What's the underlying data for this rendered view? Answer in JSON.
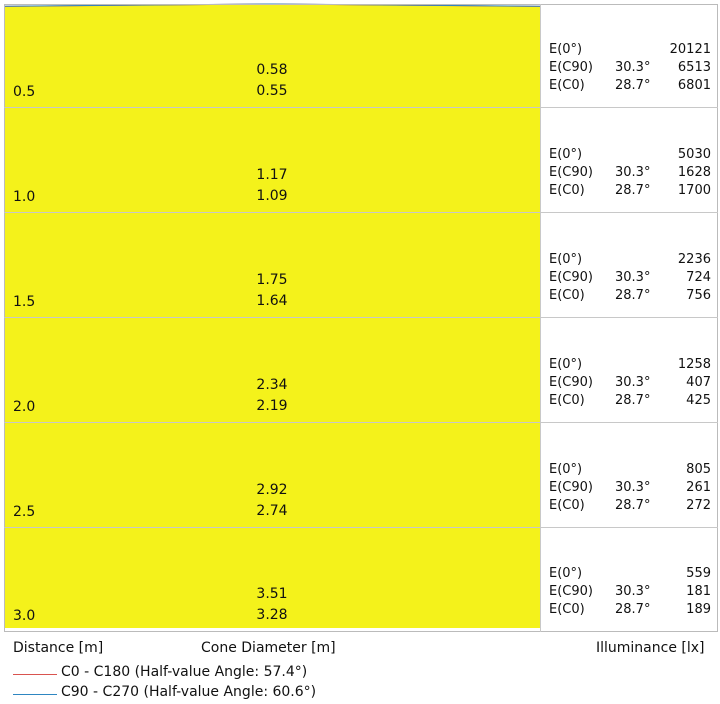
{
  "chart_data": {
    "type": "area",
    "title": "",
    "xlabel": "Cone Diameter [m]",
    "ylabel": "Distance [m]",
    "illuminance_label": "Illuminance [lx]",
    "fill_color": "#f4f21b",
    "distance_max": 3.0,
    "rows": [
      {
        "distance": "0.5",
        "d_c90": "0.58",
        "d_c0": "0.55",
        "e0_label": "E(0°)",
        "e0": "20121",
        "ec90_label": "E(C90)",
        "ec90_angle": "30.3°",
        "ec90": "6513",
        "ec0_label": "E(C0)",
        "ec0_angle": "28.7°",
        "ec0": "6801"
      },
      {
        "distance": "1.0",
        "d_c90": "1.17",
        "d_c0": "1.09",
        "e0_label": "E(0°)",
        "e0": "5030",
        "ec90_label": "E(C90)",
        "ec90_angle": "30.3°",
        "ec90": "1628",
        "ec0_label": "E(C0)",
        "ec0_angle": "28.7°",
        "ec0": "1700"
      },
      {
        "distance": "1.5",
        "d_c90": "1.75",
        "d_c0": "1.64",
        "e0_label": "E(0°)",
        "e0": "2236",
        "ec90_label": "E(C90)",
        "ec90_angle": "30.3°",
        "ec90": "724",
        "ec0_label": "E(C0)",
        "ec0_angle": "28.7°",
        "ec0": "756"
      },
      {
        "distance": "2.0",
        "d_c90": "2.34",
        "d_c0": "2.19",
        "e0_label": "E(0°)",
        "e0": "1258",
        "ec90_label": "E(C90)",
        "ec90_angle": "30.3°",
        "ec90": "407",
        "ec0_label": "E(C0)",
        "ec0_angle": "28.7°",
        "ec0": "425"
      },
      {
        "distance": "2.5",
        "d_c90": "2.92",
        "d_c0": "2.74",
        "e0_label": "E(0°)",
        "e0": "805",
        "ec90_label": "E(C90)",
        "ec90_angle": "30.3°",
        "ec90": "261",
        "ec0_label": "E(C0)",
        "ec0_angle": "28.7°",
        "ec0": "272"
      },
      {
        "distance": "3.0",
        "d_c90": "3.51",
        "d_c0": "3.28",
        "e0_label": "E(0°)",
        "e0": "559",
        "ec90_label": "E(C90)",
        "ec90_angle": "30.3°",
        "ec90": "181",
        "ec0_label": "E(C0)",
        "ec0_angle": "28.7°",
        "ec0": "189"
      }
    ],
    "series": [
      {
        "name": "C0 - C180 (Half-value Angle: 57.4°)",
        "half_angle": 57.4,
        "color": "#d9534f"
      },
      {
        "name": "C90 - C270 (Half-value Angle: 60.6°)",
        "half_angle": 60.6,
        "color": "#2e86c1"
      }
    ]
  }
}
